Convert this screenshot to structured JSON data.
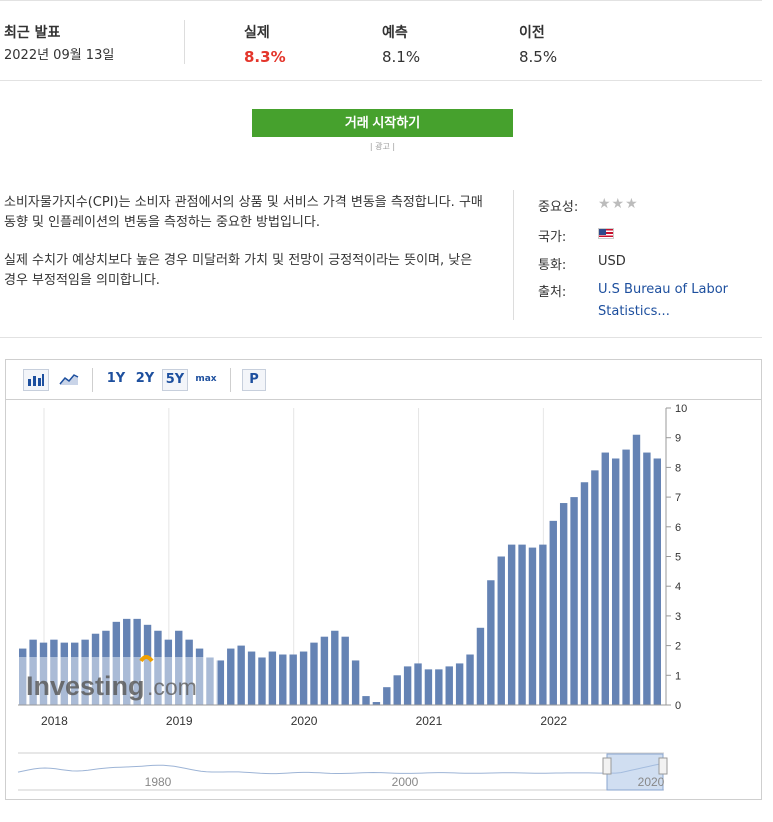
{
  "release": {
    "label": "최근 발표",
    "date": "2022년 09월 13일",
    "actual_label": "실제",
    "actual_value": "8.3%",
    "forecast_label": "예측",
    "forecast_value": "8.1%",
    "previous_label": "이전",
    "previous_value": "8.5%"
  },
  "cta": {
    "label": "거래 시작하기",
    "ad_label": "| 광고 |"
  },
  "description": {
    "p1": "소비자물가지수(CPI)는 소비자 관점에서의 상품 및 서비스 가격 변동을 측정합니다. 구매 동향 및 인플레이션의 변동을 측정하는 중요한 방법입니다.",
    "p2": "실제 수치가 예상치보다 높은 경우 미달러화 가치 및 전망이 긍정적이라는 뜻이며, 낮은 경우 부정적임을 의미합니다."
  },
  "meta": {
    "importance_label": "중요성:",
    "importance_stars": "★★★",
    "country_label": "국가:",
    "currency_label": "통화:",
    "currency_value": "USD",
    "source_label": "출처:",
    "source_line1": "U.S Bureau of Labor",
    "source_line2": "Statistics..."
  },
  "toolbar": {
    "range_1y": "1Y",
    "range_2y": "2Y",
    "range_5y": "5Y",
    "range_max": "max",
    "p_label": "P"
  },
  "colors": {
    "bar": "#6583b4",
    "accent": "#46a12d",
    "actual": "#e4352b",
    "link": "#1d4f9e"
  },
  "watermark": {
    "brand": "Investing",
    "suffix": ".com"
  },
  "chart_data": {
    "type": "bar",
    "x_tick_labels": [
      "2018",
      "2019",
      "2020",
      "2021",
      "2022"
    ],
    "ylim": [
      0,
      10
    ],
    "y_ticks": [
      0,
      1,
      2,
      3,
      4,
      5,
      6,
      7,
      8,
      9,
      10
    ],
    "series": [
      {
        "values": [
          1.9,
          2.2,
          2.1,
          2.2,
          2.1,
          2.1,
          2.2,
          2.4,
          2.5,
          2.8,
          2.9,
          2.9,
          2.7,
          2.5,
          2.2,
          2.5,
          2.2,
          1.9,
          1.6,
          1.5,
          1.9,
          2.0,
          1.8,
          1.6,
          1.8,
          1.7,
          1.7,
          1.8,
          2.1,
          2.3,
          2.5,
          2.3,
          1.5,
          0.3,
          0.1,
          0.6,
          1.0,
          1.3,
          1.4,
          1.2,
          1.2,
          1.3,
          1.4,
          1.7,
          2.6,
          4.2,
          5.0,
          5.4,
          5.4,
          5.3,
          5.4,
          6.2,
          6.8,
          7.0,
          7.5,
          7.9,
          8.5,
          8.3,
          8.6,
          9.1,
          8.5,
          8.3
        ]
      }
    ],
    "navigator_labels": [
      "1980",
      "2000",
      "2020"
    ]
  }
}
